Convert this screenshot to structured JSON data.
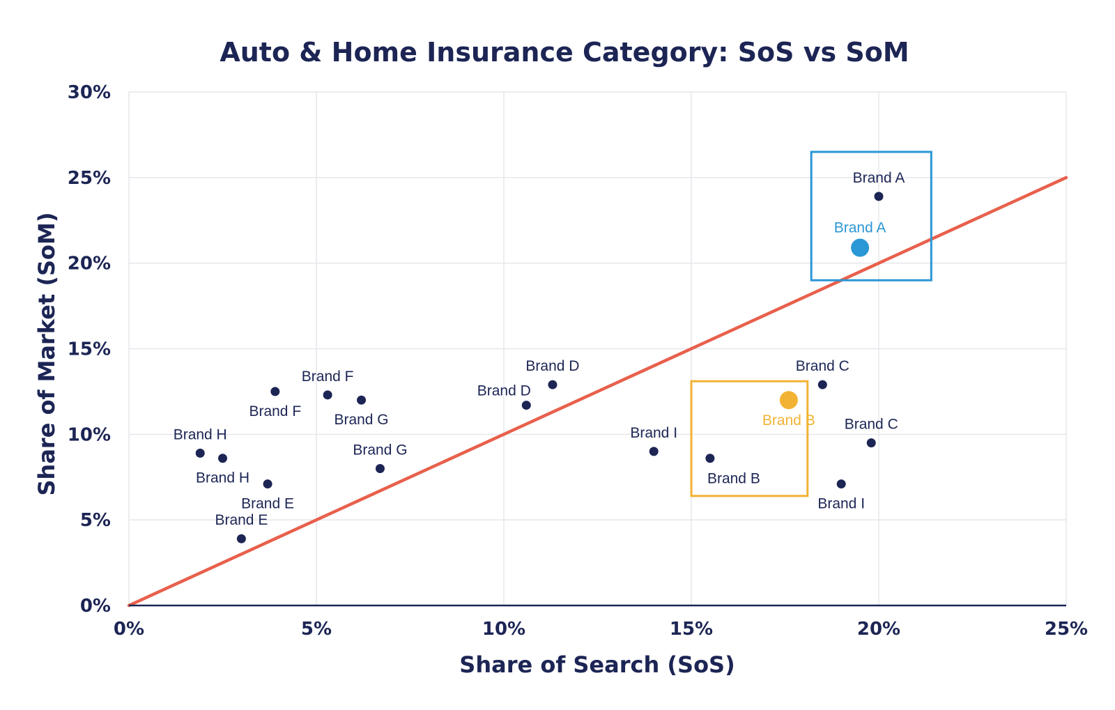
{
  "chart_data": {
    "type": "scatter",
    "title": "Auto & Home Insurance Category: SoS vs SoM",
    "xlabel": "Share of Search (SoS)",
    "ylabel": "Share of Market (SoM)",
    "xlim": [
      0,
      25
    ],
    "ylim": [
      0,
      30
    ],
    "x_ticks": [
      0,
      5,
      10,
      15,
      20,
      25
    ],
    "x_tick_labels": [
      "0%",
      "5%",
      "10%",
      "15%",
      "20%",
      "25%"
    ],
    "y_ticks": [
      0,
      5,
      10,
      15,
      20,
      25,
      30
    ],
    "y_tick_labels": [
      "0%",
      "5%",
      "10%",
      "15%",
      "20%",
      "25%",
      "30%"
    ],
    "grid": true,
    "reference_line": {
      "from": [
        0,
        0
      ],
      "to": [
        25,
        25
      ],
      "color": "#e8604c"
    },
    "point_color": "#1c2554",
    "points": [
      {
        "label": "Brand A",
        "x": 20.0,
        "y": 23.9,
        "label_pos": "above"
      },
      {
        "label": "Brand B",
        "x": 15.5,
        "y": 8.6,
        "label_pos": "below-right"
      },
      {
        "label": "Brand C",
        "x": 18.5,
        "y": 12.9,
        "label_pos": "above"
      },
      {
        "label": "Brand C",
        "x": 19.8,
        "y": 9.5,
        "label_pos": "above"
      },
      {
        "label": "Brand D",
        "x": 11.3,
        "y": 12.9,
        "label_pos": "above"
      },
      {
        "label": "Brand D",
        "x": 10.6,
        "y": 11.7,
        "label_pos": "above-left"
      },
      {
        "label": "Brand E",
        "x": 3.7,
        "y": 7.1,
        "label_pos": "below"
      },
      {
        "label": "Brand E",
        "x": 3.0,
        "y": 3.9,
        "label_pos": "above"
      },
      {
        "label": "Brand F",
        "x": 3.9,
        "y": 12.5,
        "label_pos": "below"
      },
      {
        "label": "Brand F",
        "x": 5.3,
        "y": 12.3,
        "label_pos": "above"
      },
      {
        "label": "Brand G",
        "x": 6.2,
        "y": 12.0,
        "label_pos": "below"
      },
      {
        "label": "Brand G",
        "x": 6.7,
        "y": 8.0,
        "label_pos": "above"
      },
      {
        "label": "Brand H",
        "x": 1.9,
        "y": 8.9,
        "label_pos": "above"
      },
      {
        "label": "Brand H",
        "x": 2.5,
        "y": 8.6,
        "label_pos": "below"
      },
      {
        "label": "Brand I",
        "x": 14.0,
        "y": 9.0,
        "label_pos": "above"
      },
      {
        "label": "Brand I",
        "x": 19.0,
        "y": 7.1,
        "label_pos": "below"
      }
    ],
    "highlights": [
      {
        "label": "Brand A",
        "x": 19.5,
        "y": 20.9,
        "color": "#2b97d4",
        "box": {
          "x_range": [
            18.2,
            21.4
          ],
          "y_range": [
            19.0,
            26.5
          ]
        }
      },
      {
        "label": "Brand B",
        "x": 17.6,
        "y": 12.0,
        "color": "#f2b233",
        "box": {
          "x_range": [
            15.0,
            18.1
          ],
          "y_range": [
            6.4,
            13.1
          ]
        }
      }
    ]
  }
}
